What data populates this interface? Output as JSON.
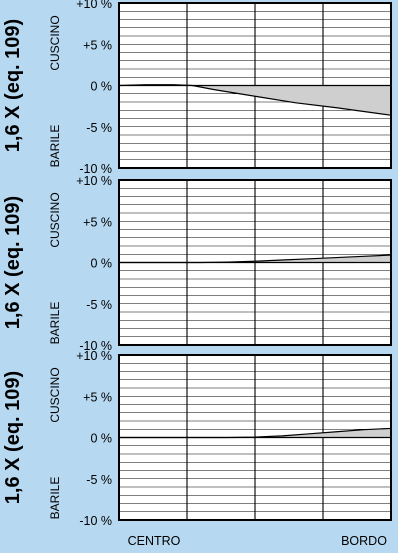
{
  "colors": {
    "background": "#b7d8f1",
    "plot_bg": "#ffffff",
    "frame": "#000000",
    "fill": "#cfcfcf",
    "text": "#000000"
  },
  "chart_data": [
    {
      "type": "area",
      "title": "1,6 X (eq. 109)",
      "ylabel_top": "CUSCINO",
      "ylabel_bottom": "BARILE",
      "x_tick_labels": [
        "CENTRO",
        "BORDO"
      ],
      "y_ticks": [
        {
          "value": 10,
          "label": "+10 %"
        },
        {
          "value": 5,
          "label": "+5 %"
        },
        {
          "value": 0,
          "label": "0 %"
        },
        {
          "value": -5,
          "label": "-5 %"
        },
        {
          "value": -10,
          "label": "-10 %"
        }
      ],
      "ylim": [
        -10,
        10
      ],
      "xlim": [
        0,
        1
      ],
      "grid": true,
      "series": [
        {
          "x": [
            0,
            0.1,
            0.2,
            0.27,
            0.35,
            0.5,
            0.65,
            0.8,
            1.0
          ],
          "y": [
            0,
            0.1,
            0.1,
            0,
            -0.5,
            -1.3,
            -2.1,
            -2.7,
            -3.6
          ]
        }
      ]
    },
    {
      "type": "area",
      "title": "1,6 X (eq. 109)",
      "ylabel_top": "CUSCINO",
      "ylabel_bottom": "BARILE",
      "x_tick_labels": [
        "CENTRO",
        "BORDO"
      ],
      "y_ticks": [
        {
          "value": 10,
          "label": "+10 %"
        },
        {
          "value": 5,
          "label": "+5 %"
        },
        {
          "value": 0,
          "label": "0 %"
        },
        {
          "value": -5,
          "label": "-5 %"
        },
        {
          "value": -10,
          "label": "-10 %"
        }
      ],
      "ylim": [
        -10,
        10
      ],
      "xlim": [
        0,
        1
      ],
      "grid": true,
      "series": [
        {
          "x": [
            0,
            0.1,
            0.2,
            0.3,
            0.4,
            0.5,
            0.6,
            0.7,
            0.8,
            0.9,
            1.0
          ],
          "y": [
            0,
            0,
            0,
            0,
            0.05,
            0.15,
            0.3,
            0.45,
            0.6,
            0.75,
            0.9
          ]
        }
      ]
    },
    {
      "type": "area",
      "title": "1,6 X (eq. 109)",
      "ylabel_top": "CUSCINO",
      "ylabel_bottom": "BARILE",
      "x_tick_labels": [
        "CENTRO",
        "BORDO"
      ],
      "y_ticks": [
        {
          "value": 10,
          "label": "+10 %"
        },
        {
          "value": 5,
          "label": "+5 %"
        },
        {
          "value": 0,
          "label": "0 %"
        },
        {
          "value": -5,
          "label": "-5 %"
        },
        {
          "value": -10,
          "label": "-10 %"
        }
      ],
      "ylim": [
        -10,
        10
      ],
      "xlim": [
        0,
        1
      ],
      "grid": true,
      "series": [
        {
          "x": [
            0,
            0.1,
            0.2,
            0.3,
            0.4,
            0.5,
            0.6,
            0.7,
            0.8,
            0.9,
            1.0
          ],
          "y": [
            0,
            0,
            0,
            0,
            0,
            0.05,
            0.2,
            0.45,
            0.7,
            0.95,
            1.1
          ]
        }
      ]
    }
  ]
}
